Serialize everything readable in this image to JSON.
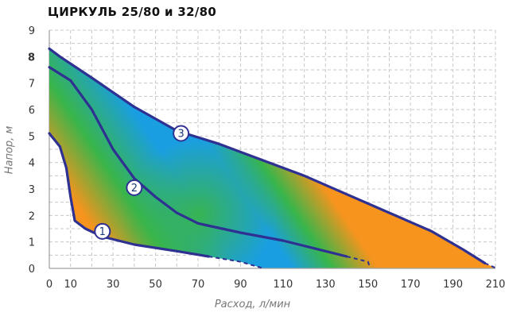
{
  "chart_data": {
    "type": "line",
    "title": "ЦИРКУЛЬ 25/80 и 32/80",
    "xlabel": "Расход, л/мин",
    "ylabel": "Напор, м",
    "xlim": [
      0,
      210
    ],
    "ylim": [
      0,
      9
    ],
    "x_ticks": [
      "0",
      "10",
      "30",
      "50",
      "70",
      "90",
      "110",
      "130",
      "150",
      "170",
      "190",
      "210"
    ],
    "y_ticks": [
      "0",
      "1",
      "2",
      "3",
      "4",
      "5",
      "6",
      "7",
      "8",
      "9"
    ],
    "highlight_y_tick": "8",
    "grid": true,
    "series": [
      {
        "name": "1",
        "points": [
          [
            0,
            5.1
          ],
          [
            5,
            4.6
          ],
          [
            8,
            3.8
          ],
          [
            10,
            2.7
          ],
          [
            12,
            1.8
          ],
          [
            17,
            1.5
          ],
          [
            25,
            1.2
          ],
          [
            40,
            0.9
          ],
          [
            60,
            0.65
          ],
          [
            75,
            0.45
          ]
        ],
        "extension": [
          [
            75,
            0.45
          ],
          [
            90,
            0.25
          ],
          [
            100,
            0.02
          ]
        ]
      },
      {
        "name": "2",
        "points": [
          [
            0,
            7.6
          ],
          [
            10,
            7.1
          ],
          [
            20,
            6.0
          ],
          [
            30,
            4.5
          ],
          [
            40,
            3.4
          ],
          [
            50,
            2.7
          ],
          [
            60,
            2.1
          ],
          [
            70,
            1.7
          ],
          [
            90,
            1.35
          ],
          [
            110,
            1.05
          ],
          [
            130,
            0.65
          ],
          [
            140,
            0.45
          ]
        ],
        "extension": [
          [
            140,
            0.45
          ],
          [
            150,
            0.25
          ],
          [
            151,
            0.02
          ]
        ]
      },
      {
        "name": "3",
        "points": [
          [
            0,
            8.3
          ],
          [
            5,
            8.0
          ],
          [
            20,
            7.2
          ],
          [
            40,
            6.1
          ],
          [
            60,
            5.2
          ],
          [
            80,
            4.7
          ],
          [
            100,
            4.1
          ],
          [
            120,
            3.5
          ],
          [
            140,
            2.8
          ],
          [
            160,
            2.1
          ],
          [
            180,
            1.4
          ],
          [
            195,
            0.7
          ],
          [
            205,
            0.2
          ]
        ],
        "extension": [
          [
            205,
            0.2
          ],
          [
            210,
            0.02
          ]
        ]
      }
    ]
  },
  "colors": {
    "curve": "#2e3192",
    "orange": "#f7941d",
    "green": "#39b54a",
    "blue": "#1a9ee2",
    "grid": "#c8c8c8",
    "highlight_tick": "#1a7fc1"
  }
}
